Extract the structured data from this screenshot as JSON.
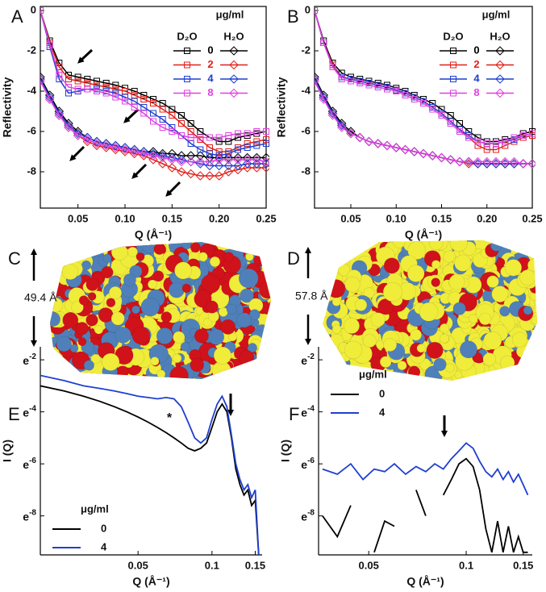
{
  "chart_data": [
    {
      "type": "line",
      "label": "A",
      "xlabel": "Q (Å⁻¹)",
      "ylabel": "Reflectivity",
      "box": true,
      "xlim": [
        0.01,
        0.25
      ],
      "ylim": [
        -9.8,
        0.2
      ],
      "xticks": [
        0.05,
        {
          "value": 0.1,
          "label": "0.10"
        },
        0.15,
        {
          "value": 0.2,
          "label": "0.20"
        },
        0.25
      ],
      "yticks": [
        0,
        -2,
        -4,
        -6,
        -8
      ],
      "legend": "upper right",
      "legend_title": "μg/ml",
      "groups": [
        "D₂O",
        "H₂O"
      ],
      "markers": [
        "square",
        "diamond"
      ],
      "x": [
        0.01,
        0.02,
        0.03,
        0.04,
        0.05,
        0.06,
        0.07,
        0.08,
        0.09,
        0.1,
        0.11,
        0.12,
        0.13,
        0.14,
        0.15,
        0.16,
        0.17,
        0.18,
        0.19,
        0.2,
        0.21,
        0.22,
        0.23,
        0.24,
        0.25
      ],
      "series": [
        {
          "name": "0",
          "color": "#000000",
          "values": [
            0,
            -1.5,
            -2.6,
            -3.2,
            -3.3,
            -3.4,
            -3.5,
            -3.6,
            -3.7,
            -3.85,
            -4.0,
            -4.2,
            -4.4,
            -4.6,
            -4.9,
            -5.2,
            -5.6,
            -6.0,
            -6.3,
            -6.5,
            -6.5,
            -6.3,
            -6.2,
            -6.1,
            -6.0
          ],
          "h2o_values": [
            -3.3,
            -4.2,
            -5.0,
            -5.6,
            -6.0,
            -6.3,
            -6.5,
            -6.6,
            -6.7,
            -6.8,
            -6.9,
            -7.0,
            -7.0,
            -7.1,
            -7.1,
            -7.2,
            -7.2,
            -7.2,
            -7.3,
            -7.3,
            -7.3,
            -7.3,
            -7.3,
            -7.3,
            -7.3
          ]
        },
        {
          "name": "2",
          "color": "#e0201b",
          "values": [
            0,
            -1.6,
            -2.8,
            -3.4,
            -3.5,
            -3.6,
            -3.7,
            -3.8,
            -3.9,
            -4.0,
            -4.2,
            -4.4,
            -4.6,
            -4.9,
            -5.2,
            -5.6,
            -6.0,
            -6.4,
            -6.8,
            -7.0,
            -7.0,
            -6.8,
            -6.6,
            -6.5,
            -6.4
          ],
          "h2o_values": [
            -3.4,
            -4.4,
            -5.2,
            -5.8,
            -6.2,
            -6.5,
            -6.7,
            -6.8,
            -6.9,
            -7.0,
            -7.1,
            -7.2,
            -7.4,
            -7.6,
            -7.8,
            -8.0,
            -8.1,
            -8.2,
            -8.2,
            -8.2,
            -8.0,
            -7.9,
            -7.8,
            -7.8,
            -7.8
          ]
        },
        {
          "name": "4",
          "color": "#1f3fd0",
          "values": [
            0,
            -1.8,
            -3.4,
            -4.1,
            -4.0,
            -3.9,
            -3.9,
            -4.0,
            -4.1,
            -4.3,
            -4.5,
            -4.8,
            -5.1,
            -5.4,
            -5.8,
            -6.2,
            -6.6,
            -6.9,
            -7.1,
            -7.2,
            -7.1,
            -6.9,
            -6.8,
            -6.7,
            -6.6
          ],
          "h2o_values": [
            -3.4,
            -4.3,
            -5.1,
            -5.7,
            -6.1,
            -6.3,
            -6.5,
            -6.6,
            -6.7,
            -6.8,
            -6.9,
            -7.0,
            -7.1,
            -7.2,
            -7.3,
            -7.4,
            -7.5,
            -7.6,
            -7.7,
            -7.7,
            -7.7,
            -7.7,
            -7.6,
            -7.6,
            -7.6
          ]
        },
        {
          "name": "8",
          "color": "#e040e0",
          "values": [
            0,
            -1.7,
            -3.2,
            -3.8,
            -3.9,
            -3.9,
            -4.0,
            -4.1,
            -4.3,
            -4.5,
            -4.8,
            -5.1,
            -5.5,
            -5.8,
            -6.0,
            -6.2,
            -6.3,
            -6.3,
            -6.3,
            -6.3,
            -6.2,
            -6.1,
            -6.1,
            -6.0,
            -6.0
          ],
          "h2o_values": [
            -3.5,
            -4.4,
            -5.2,
            -5.8,
            -6.2,
            -6.4,
            -6.6,
            -6.7,
            -6.8,
            -6.9,
            -7.0,
            -7.1,
            -7.2,
            -7.3,
            -7.4,
            -7.5,
            -7.5,
            -7.5,
            -7.5,
            -7.4,
            -7.4,
            -7.4,
            -7.4,
            -7.4,
            -7.5
          ]
        }
      ]
    },
    {
      "type": "line",
      "label": "B",
      "xlabel": "Q (Å⁻¹)",
      "ylabel": "Reflectivity",
      "box": true,
      "xlim": [
        0.01,
        0.25
      ],
      "ylim": [
        -9.8,
        0.2
      ],
      "xticks": [
        0.05,
        {
          "value": 0.1,
          "label": "0.10"
        },
        0.15,
        {
          "value": 0.2,
          "label": "0.20"
        },
        0.25
      ],
      "yticks": [
        0,
        -2,
        -4,
        -6,
        -8
      ],
      "legend": "upper right",
      "legend_title": "μg/ml",
      "groups": [
        "D₂O",
        "H₂O"
      ],
      "markers": [
        "square",
        "diamond"
      ],
      "x": [
        0.01,
        0.02,
        0.03,
        0.04,
        0.05,
        0.06,
        0.07,
        0.08,
        0.09,
        0.1,
        0.11,
        0.12,
        0.13,
        0.14,
        0.15,
        0.16,
        0.17,
        0.18,
        0.19,
        0.2,
        0.21,
        0.22,
        0.23,
        0.24,
        0.25
      ],
      "series": [
        {
          "name": "0",
          "color": "#000000",
          "values": [
            0,
            -1.5,
            -2.6,
            -3.1,
            -3.3,
            -3.4,
            -3.5,
            -3.6,
            -3.7,
            -3.85,
            -4.0,
            -4.2,
            -4.4,
            -4.6,
            -4.9,
            -5.2,
            -5.6,
            -6.0,
            -6.3,
            -6.5,
            -6.5,
            -6.4,
            -6.3,
            -6.1,
            -6.0
          ],
          "h2o_values": [
            -3.3,
            -4.2,
            -5.0,
            -5.6,
            -6.0,
            -6.3,
            -6.5,
            -6.6,
            -6.7,
            -6.8,
            -6.9,
            -7.0,
            -7.1,
            -7.2,
            -7.3,
            -7.4,
            -7.5,
            -7.5,
            -7.6,
            -7.6,
            -7.6,
            -7.6,
            -7.6,
            -7.6,
            -7.6
          ]
        },
        {
          "name": "2",
          "color": "#e0201b",
          "values": [
            0,
            -1.6,
            -2.7,
            -3.3,
            -3.4,
            -3.5,
            -3.6,
            -3.7,
            -3.8,
            -3.95,
            -4.1,
            -4.3,
            -4.5,
            -4.8,
            -5.1,
            -5.5,
            -5.9,
            -6.3,
            -6.7,
            -6.9,
            -6.9,
            -6.7,
            -6.5,
            -6.3,
            -6.2
          ],
          "h2o_values": [
            -3.4,
            -4.3,
            -5.1,
            -5.7,
            -6.1,
            -6.3,
            -6.5,
            -6.6,
            -6.7,
            -6.8,
            -6.9,
            -7.0,
            -7.1,
            -7.2,
            -7.3,
            -7.4,
            -7.5,
            -7.6,
            -7.6,
            -7.6,
            -7.6,
            -7.6,
            -7.6,
            -7.6,
            -7.6
          ]
        },
        {
          "name": "4",
          "color": "#1f3fd0",
          "values": [
            0,
            -1.6,
            -2.8,
            -3.3,
            -3.4,
            -3.5,
            -3.6,
            -3.7,
            -3.8,
            -3.95,
            -4.1,
            -4.3,
            -4.5,
            -4.8,
            -5.1,
            -5.5,
            -5.9,
            -6.2,
            -6.5,
            -6.6,
            -6.6,
            -6.5,
            -6.4,
            -6.2,
            -6.1
          ],
          "h2o_values": [
            -3.4,
            -4.3,
            -5.1,
            -5.7,
            -6.1,
            -6.3,
            -6.5,
            -6.6,
            -6.7,
            -6.8,
            -6.9,
            -7.0,
            -7.1,
            -7.2,
            -7.3,
            -7.4,
            -7.5,
            -7.5,
            -7.6,
            -7.6,
            -7.6,
            -7.6,
            -7.6,
            -7.6,
            -7.6
          ]
        },
        {
          "name": "8",
          "color": "#e040e0",
          "values": [
            0,
            -1.6,
            -2.8,
            -3.4,
            -3.5,
            -3.6,
            -3.7,
            -3.8,
            -3.9,
            -4.0,
            -4.2,
            -4.4,
            -4.6,
            -4.9,
            -5.2,
            -5.6,
            -6.0,
            -6.3,
            -6.5,
            -6.6,
            -6.6,
            -6.5,
            -6.3,
            -6.2,
            -6.1
          ],
          "h2o_values": [
            -3.5,
            -4.4,
            -5.2,
            -5.8,
            -6.1,
            -6.3,
            -6.5,
            -6.6,
            -6.7,
            -6.8,
            -6.9,
            -7.0,
            -7.1,
            -7.2,
            -7.3,
            -7.4,
            -7.5,
            -7.5,
            -7.5,
            -7.5,
            -7.5,
            -7.5,
            -7.5,
            -7.6,
            -7.6
          ]
        }
      ]
    },
    {
      "type": "line",
      "label": "E",
      "xlabel": "Q (Å⁻¹)",
      "ylabel": "I (Q)",
      "box": false,
      "xlog": true,
      "annotation": "*",
      "xlim": [
        0.02,
        0.16
      ],
      "ylim": [
        -9.5,
        -1.5
      ],
      "xticks": [
        0.05,
        0.1,
        0.15
      ],
      "yticks": [
        {
          "value": -2,
          "label": "e-2"
        },
        {
          "value": -4,
          "label": "e-4"
        },
        {
          "value": -6,
          "label": "e-6"
        },
        {
          "value": -8,
          "label": "e-8"
        }
      ],
      "legend": "lower left",
      "legend_title": "μg/ml",
      "x": [
        0.02,
        0.025,
        0.03,
        0.035,
        0.04,
        0.045,
        0.05,
        0.055,
        0.06,
        0.065,
        0.07,
        0.075,
        0.08,
        0.085,
        0.09,
        0.095,
        0.1,
        0.105,
        0.11,
        0.115,
        0.12,
        0.125,
        0.13,
        0.135,
        0.14,
        0.145,
        0.15,
        0.155
      ],
      "series": [
        {
          "name": "0",
          "color": "#000000",
          "values": [
            -3.0,
            -3.2,
            -3.4,
            -3.6,
            -3.8,
            -4.0,
            -4.2,
            -4.4,
            -4.6,
            -4.8,
            -5.0,
            -5.2,
            -5.4,
            -5.5,
            -5.4,
            -5.2,
            -4.6,
            -4.0,
            -3.7,
            -4.0,
            -5.0,
            -6.2,
            -6.8,
            -7.2,
            -7.0,
            -7.6,
            -7.4,
            -9.5
          ]
        },
        {
          "name": "4",
          "color": "#1f3fd0",
          "values": [
            -2.6,
            -2.8,
            -3.0,
            -3.1,
            -3.2,
            -3.3,
            -3.4,
            -3.45,
            -3.5,
            -3.45,
            -3.5,
            -3.8,
            -4.4,
            -5.0,
            -5.2,
            -5.0,
            -4.3,
            -3.7,
            -3.4,
            -3.8,
            -4.9,
            -6.0,
            -6.6,
            -7.0,
            -6.8,
            -7.3,
            -7.0,
            -9.5
          ]
        }
      ]
    },
    {
      "type": "line",
      "label": "F",
      "xlabel": "Q (Å⁻¹)",
      "ylabel": "I (Q)",
      "box": false,
      "xlog": true,
      "xlim": [
        0.035,
        0.16
      ],
      "ylim": [
        -9.5,
        -1.5
      ],
      "xticks": [
        0.05,
        0.1,
        0.15
      ],
      "yticks": [
        {
          "value": -2,
          "label": "e-2"
        },
        {
          "value": -4,
          "label": "e-4"
        },
        {
          "value": -6,
          "label": "e-6"
        },
        {
          "value": -8,
          "label": "e-8"
        }
      ],
      "legend": "upper left",
      "legend_title": "μg/ml",
      "x": [
        0.036,
        0.04,
        0.044,
        0.048,
        0.052,
        0.056,
        0.06,
        0.065,
        0.07,
        0.075,
        0.08,
        0.085,
        0.09,
        0.095,
        0.1,
        0.105,
        0.11,
        0.115,
        0.12,
        0.125,
        0.13,
        0.135,
        0.14,
        0.145,
        0.15,
        0.155
      ],
      "series": [
        {
          "name": "0",
          "color": "#000000",
          "values": [
            -8.0,
            -8.8,
            -7.6,
            null,
            -9.4,
            -8.2,
            -8.4,
            null,
            -7.0,
            -8.0,
            null,
            -7.2,
            -6.6,
            -6.0,
            -5.8,
            -6.1,
            -7.0,
            -8.5,
            -9.4,
            -8.2,
            -9.4,
            -8.4,
            -9.4,
            -8.8,
            -9.4,
            -9.4
          ]
        },
        {
          "name": "4",
          "color": "#1f3fd0",
          "values": [
            -6.2,
            -6.4,
            -6.0,
            -6.6,
            -6.2,
            -6.3,
            -6.0,
            -6.4,
            -6.1,
            -6.3,
            -6.0,
            -6.2,
            -5.8,
            -5.5,
            -5.2,
            -5.4,
            -5.9,
            -6.3,
            -6.5,
            -6.2,
            -6.6,
            -6.3,
            -6.7,
            -6.4,
            -6.8,
            -7.2
          ]
        }
      ]
    }
  ],
  "structures": [
    {
      "label": "C",
      "height": "49.4 Å"
    },
    {
      "label": "D",
      "height": "57.8 Å"
    }
  ]
}
